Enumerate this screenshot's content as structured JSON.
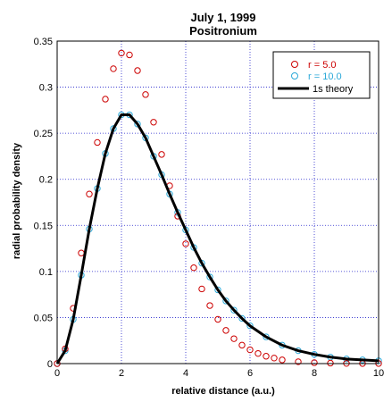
{
  "chart_data": {
    "type": "scatter",
    "title": "July 1, 1999",
    "subtitle": "Positronium",
    "xlabel": "relative distance (a.u.)",
    "ylabel": "radial probability density",
    "xlim": [
      0,
      10
    ],
    "ylim": [
      0,
      0.35
    ],
    "xticks": [
      0,
      2,
      4,
      6,
      8,
      10
    ],
    "yticks": [
      0,
      0.05,
      0.1,
      0.15,
      0.2,
      0.25,
      0.3,
      0.35
    ],
    "xtick_labels": [
      "0",
      "2",
      "4",
      "6",
      "8",
      "10"
    ],
    "ytick_labels": [
      "0",
      "0.05",
      "0.1",
      "0.15",
      "0.2",
      "0.25",
      "0.3",
      "0.35"
    ],
    "grid": true,
    "legend_position": "top-right",
    "series": [
      {
        "name": "r = 5.0",
        "marker": "circle",
        "color": "#cc0000",
        "x": [
          0,
          0.25,
          0.5,
          0.75,
          1.0,
          1.25,
          1.5,
          1.75,
          2.0,
          2.25,
          2.5,
          2.75,
          3.0,
          3.25,
          3.5,
          3.75,
          4.0,
          4.25,
          4.5,
          4.75,
          5.0,
          5.25,
          5.5,
          5.75,
          6.0,
          6.25,
          6.5,
          6.75,
          7.0,
          7.5,
          8.0,
          8.5,
          9.0,
          9.5,
          10.0
        ],
        "y": [
          0,
          0.016,
          0.06,
          0.12,
          0.184,
          0.24,
          0.287,
          0.32,
          0.337,
          0.335,
          0.318,
          0.292,
          0.262,
          0.227,
          0.193,
          0.16,
          0.13,
          0.104,
          0.081,
          0.063,
          0.048,
          0.036,
          0.027,
          0.02,
          0.015,
          0.011,
          0.008,
          0.006,
          0.004,
          0.002,
          0.001,
          0.0005,
          0.0002,
          0.0001,
          0.0001
        ]
      },
      {
        "name": "r = 10.0",
        "marker": "circle",
        "color": "#2aa8d8",
        "x": [
          0,
          0.25,
          0.5,
          0.75,
          1.0,
          1.25,
          1.5,
          1.75,
          2.0,
          2.25,
          2.5,
          2.75,
          3.0,
          3.25,
          3.5,
          3.75,
          4.0,
          4.25,
          4.5,
          4.75,
          5.0,
          5.25,
          5.5,
          5.75,
          6.0,
          6.5,
          7.0,
          7.5,
          8.0,
          8.5,
          9.0,
          9.5,
          10.0
        ],
        "y": [
          0,
          0.014,
          0.048,
          0.096,
          0.146,
          0.19,
          0.228,
          0.255,
          0.27,
          0.27,
          0.26,
          0.245,
          0.225,
          0.205,
          0.184,
          0.164,
          0.145,
          0.126,
          0.109,
          0.094,
          0.08,
          0.068,
          0.058,
          0.049,
          0.041,
          0.029,
          0.02,
          0.014,
          0.01,
          0.007,
          0.005,
          0.004,
          0.003
        ]
      },
      {
        "name": "1s theory",
        "marker": "line",
        "color": "#000000",
        "x": [
          0,
          0.25,
          0.5,
          0.75,
          1.0,
          1.25,
          1.5,
          1.75,
          2.0,
          2.25,
          2.5,
          2.75,
          3.0,
          3.25,
          3.5,
          3.75,
          4.0,
          4.25,
          4.5,
          4.75,
          5.0,
          5.25,
          5.5,
          5.75,
          6.0,
          6.5,
          7.0,
          7.5,
          8.0,
          8.5,
          9.0,
          9.5,
          10.0
        ],
        "y": [
          0,
          0.014,
          0.048,
          0.096,
          0.146,
          0.19,
          0.228,
          0.255,
          0.27,
          0.27,
          0.26,
          0.245,
          0.225,
          0.205,
          0.184,
          0.164,
          0.145,
          0.126,
          0.109,
          0.094,
          0.08,
          0.068,
          0.058,
          0.049,
          0.041,
          0.029,
          0.02,
          0.014,
          0.01,
          0.007,
          0.005,
          0.004,
          0.003
        ]
      }
    ]
  }
}
